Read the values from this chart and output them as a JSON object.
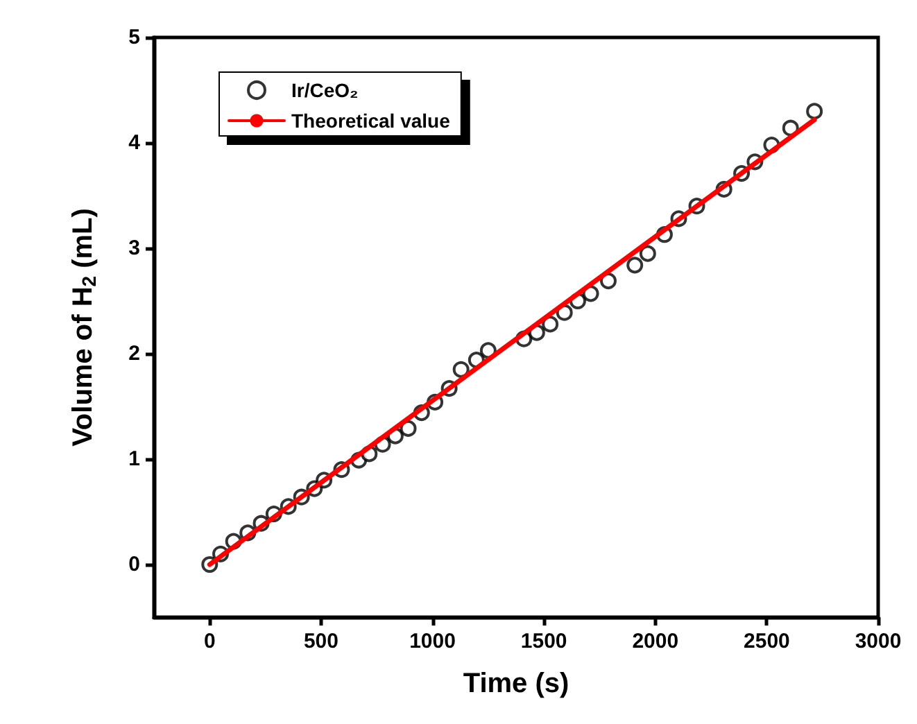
{
  "chart_data": {
    "type": "scatter",
    "xlabel": "Time (s)",
    "ylabel": "Volume of H$_{2}$ (mL)",
    "xlim": [
      -250,
      3000
    ],
    "xticks": [
      0,
      500,
      1000,
      1500,
      2000,
      2500,
      3000
    ],
    "ylim": [
      -0.5,
      5
    ],
    "yticks": [
      0,
      1,
      2,
      3,
      4,
      5
    ],
    "grid": false,
    "legend": "top left",
    "series": [
      {
        "name": "Ir/CeO₂",
        "marker": "circle",
        "color": "#000000",
        "x": [
          0,
          49,
          107,
          171,
          231,
          288,
          353,
          412,
          470,
          513,
          592,
          669,
          716,
          776,
          833,
          891,
          951,
          1011,
          1075,
          1128,
          1197,
          1250,
          1410,
          1468,
          1528,
          1592,
          1652,
          1710,
          1789,
          1908,
          1966,
          2041,
          2105,
          2186,
          2308,
          2387,
          2447,
          2522,
          2607,
          2714
        ],
        "values": [
          0,
          0.1,
          0.22,
          0.3,
          0.39,
          0.48,
          0.55,
          0.64,
          0.72,
          0.8,
          0.9,
          0.99,
          1.05,
          1.14,
          1.22,
          1.29,
          1.44,
          1.54,
          1.67,
          1.85,
          1.94,
          2.03,
          2.14,
          2.2,
          2.28,
          2.39,
          2.5,
          2.57,
          2.69,
          2.84,
          2.95,
          3.13,
          3.28,
          3.4,
          3.56,
          3.71,
          3.82,
          3.98,
          4.14,
          4.3
        ]
      },
      {
        "name": "Theoretical value",
        "type": "line",
        "color": "#ff0000",
        "line_style": "solid",
        "x": [
          0,
          2714
        ],
        "values": [
          0,
          4.22
        ]
      }
    ]
  }
}
